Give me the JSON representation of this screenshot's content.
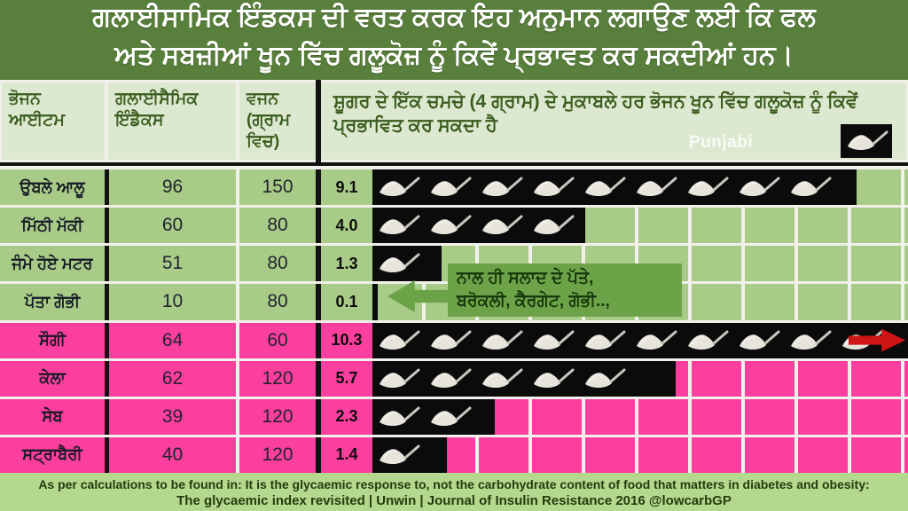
{
  "title": {
    "line1": "ਗਲਾਈਸਾਮਿਕ ਇੰਡਕਸ ਦੀ ਵਰਤ ਕਰਕ ਇਹ ਅਨੁਮਾਨ ਲਗਾਉਣ ਲਈ ਕਿ ਫਲ",
    "line2": "ਅਤੇ ਸਬਜ਼ੀਆਂ ਖੂਨ ਵਿੱਚ ਗਲੂਕੋਜ਼ ਨੂੰ ਕਿਵੇਂ ਪ੍ਰਭਾਵਤ ਕਰ ਸਕਦੀਆਂ ਹਨ।"
  },
  "watermark": "Punjabi",
  "table": {
    "columns": [
      "ਭੋਜਨ ਆਈਟਮ",
      "ਗਲਾਈਸੈਮਿਕ ਇੰਡੈਕਸ",
      "ਵਜਨ (ਗ੍ਰਾਮ ਵਿਚ)",
      "ਸ਼ੂਗਰ ਦੇ ਇੱਕ ਚਮਚੇ (4 ਗ੍ਰਾਮ) ਦੇ ਮੁਕਾਬਲੇ ਹਰ ਭੋਜਨ ਖੂਨ ਵਿੱਚ ਗਲੂਕੋਜ਼ ਨੂੰ ਕਿਵੇਂ ਪ੍ਰਭਾਵਿਤ ਕਰ ਸਕਦਾ ਹੈ"
    ],
    "rows": [
      {
        "food": "ਉਬਲੇ ਆਲੂ",
        "gi": "96",
        "weight": "150",
        "spoons": "9.1",
        "value": 9.1,
        "group": "veg",
        "overflow": false
      },
      {
        "food": "ਮਿੱਠੀ ਮੱਕੀ",
        "gi": "60",
        "weight": "80",
        "spoons": "4.0",
        "value": 4.0,
        "group": "veg",
        "overflow": false
      },
      {
        "food": "ਜੰਮੇ ਹੋਏ ਮਟਰ",
        "gi": "51",
        "weight": "80",
        "spoons": "1.3",
        "value": 1.3,
        "group": "veg",
        "overflow": false
      },
      {
        "food": "ਪੱਤਾ ਗੋਭੀ",
        "gi": "10",
        "weight": "80",
        "spoons": "0.1",
        "value": 0.1,
        "group": "veg",
        "overflow": false
      },
      {
        "food": "ਸੌਗੀ",
        "gi": "64",
        "weight": "60",
        "spoons": "10.3",
        "value": 10.3,
        "group": "fruit",
        "overflow": true
      },
      {
        "food": "ਕੇਲਾ",
        "gi": "62",
        "weight": "120",
        "spoons": "5.7",
        "value": 5.7,
        "group": "fruit",
        "overflow": false
      },
      {
        "food": "ਸੇਬ",
        "gi": "39",
        "weight": "120",
        "spoons": "2.3",
        "value": 2.3,
        "group": "fruit",
        "overflow": false
      },
      {
        "food": "ਸਟ੍ਰਾਬੈਰੀ",
        "gi": "40",
        "weight": "120",
        "spoons": "1.4",
        "value": 1.4,
        "group": "fruit",
        "overflow": false
      }
    ]
  },
  "callout": {
    "line1": "ਨਾਲ ਹੀ ਸਲਾਦ ਦੇ ਪੱਤੇ,",
    "line2": "ਬਰੋਕਲੀ, ਕੈਰਗੇਟ, ਗੋਭੀ..,"
  },
  "footer": {
    "line1": "As per calculations to be found in: It is the glycaemic response to, not the carbohydrate content of food that matters in diabetes and obesity:",
    "line2": "The glycaemic index revisited | Unwin | Journal of Insulin Resistance 2016  @lowcarbGP"
  },
  "icons": {
    "spoon": "sugar-spoon-icon",
    "overflow": "right-arrow-icon",
    "callout": "left-arrow-icon"
  },
  "colors": {
    "header_bg": "#597f3c",
    "header_text": "#ffffff",
    "table_header_bg": "#dce8cf",
    "table_header_text": "#3a5c1e",
    "veg_row_bg": "#a8cc88",
    "fruit_row_bg": "#fb3f9f",
    "spoon_box_bg": "#0b0b0b",
    "grid_line": "#f1f0ea",
    "callout_bg": "#6da348",
    "callout_text": "#14350a",
    "overflow_arrow": "#cf1515",
    "footer_bg": "#b5d88f",
    "footer_text": "#213e0d"
  },
  "chart_data": {
    "type": "bar",
    "subtype": "pictograph-teaspoons",
    "title": "ਗਲਾਈਸਾਮਿਕ ਇੰਡਕਸ ਦੀ ਵਰਤ ਕਰਕ ਇਹ ਅਨੁਮਾਨ ਲਗਾਉਣ ਲਈ ਕਿ ਫਲ ਅਤੇ ਸਬਜ਼ੀਆਂ ਖੂਨ ਵਿੱਚ ਗਲੂਕੋਜ਼ ਨੂੰ ਕਿਵੇਂ ਪ੍ਰਭਾਵਤ ਕਰ ਸਕਦੀਆਂ ਹਨ।",
    "unit_note": "1 teaspoon of sugar = 4 g (ਸ਼ੂਗਰ ਦੇ ਇੱਕ ਚਮਚੇ 4 ਗ੍ਰਾਮ)",
    "categories": [
      "ਉਬਲੇ ਆਲੂ",
      "ਮਿੱਠੀ ਮੱਕੀ",
      "ਜੰਮੇ ਹੋਏ ਮਟਰ",
      "ਪੱਤਾ ਗੋਭੀ",
      "ਸੌਗੀ",
      "ਕੇਲਾ",
      "ਸੇਬ",
      "ਸਟ੍ਰਾਬੈਰੀ"
    ],
    "groups": [
      "vegetables",
      "vegetables",
      "vegetables",
      "vegetables",
      "fruits",
      "fruits",
      "fruits",
      "fruits"
    ],
    "series": [
      {
        "name": "ਗਲਾਈਸੈਮਿਕ ਇੰਡੈਕਸ (glycaemic index)",
        "values": [
          96,
          60,
          51,
          10,
          64,
          62,
          39,
          40
        ]
      },
      {
        "name": "ਵਜਨ ਗ੍ਰਾਮ ਵਿਚ (weight in grams)",
        "values": [
          150,
          80,
          80,
          80,
          60,
          120,
          120,
          120
        ]
      },
      {
        "name": "teaspoons of sugar equivalent",
        "values": [
          9.1,
          4.0,
          1.3,
          0.1,
          10.3,
          5.7,
          2.3,
          1.4
        ]
      }
    ],
    "xlim": [
      0,
      10
    ],
    "grid": true,
    "annotations": [
      "ਨਾਲ ਹੀ ਸਲਾਦ ਦੇ ਪੱਤੇ, ਬਰੋਕਲੀ, ਕੈਰਗੇਟ, ਗੋਭੀ..,"
    ]
  }
}
